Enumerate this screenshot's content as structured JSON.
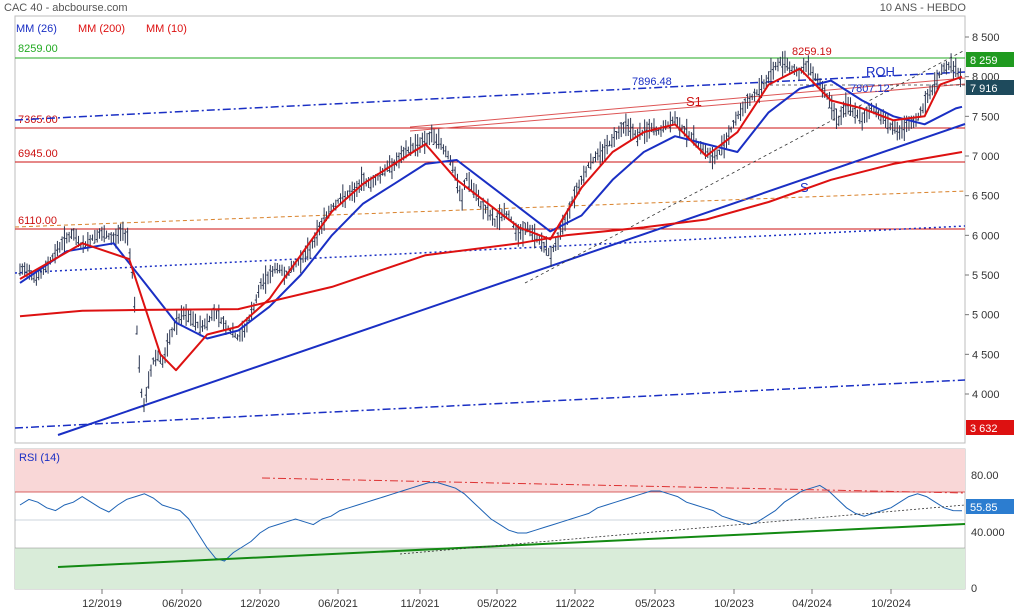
{
  "header": {
    "left": "CAC 40 - abcbourse.com",
    "right": "10 ANS - HEBDO"
  },
  "legend": [
    {
      "label": "MM (26)",
      "color": "#1a2fc4"
    },
    {
      "label": "MM (200)",
      "color": "#dd1111"
    },
    {
      "label": "MM (10)",
      "color": "#dd1111"
    }
  ],
  "colors": {
    "price_bars": "#2a3550",
    "mm26": "#1a2fc4",
    "mm200": "#dd1111",
    "mm10": "#dd1111",
    "support_line": "#1a2fc4",
    "level_lines": "#cc1111",
    "resistance_8259": "#22aa22",
    "rsi_line": "#1e63b5",
    "rsi_upper_zone": "#f9d7d7",
    "rsi_lower_zone": "#d9ecd9",
    "rsi_support": "#138a13",
    "badge_green": "#1f9a1f",
    "badge_dark": "#1e4a5c",
    "badge_red": "#dd1111",
    "badge_blue": "#2c7dd0"
  },
  "annotations": {
    "level_8259": "8259.00",
    "level_7365": "7365.00",
    "level_6945": "6945.00",
    "level_6110": "6110.00",
    "peak_label": "8259.19",
    "upper_channel_label": "7896.48",
    "lower_channel_label": "7807.12",
    "s1_label": "S1",
    "s_label": "S",
    "roh_label": "ROH"
  },
  "badges": {
    "price_high": "8 259",
    "price_last": "7 916",
    "price_low": "3 632",
    "rsi_last": "55.85"
  },
  "rsi_title": "RSI (14)",
  "chart_data": [
    {
      "type": "line",
      "title": "CAC 40",
      "x_ticks": [
        "12/2019",
        "06/2020",
        "12/2020",
        "06/2021",
        "11/2021",
        "05/2022",
        "11/2022",
        "05/2023",
        "10/2023",
        "04/2024",
        "10/2024"
      ],
      "y_ticks": [
        "8 500",
        "8 000",
        "7 500",
        "7 000",
        "6 500",
        "6 000",
        "5 500",
        "5 000",
        "4 500",
        "4 000"
      ],
      "ylim": [
        3500,
        8600
      ],
      "grid": false,
      "legend_position": "top-left",
      "price_points": [
        [
          0,
          5550
        ],
        [
          5,
          5580
        ],
        [
          10,
          5450
        ],
        [
          15,
          5550
        ],
        [
          20,
          5700
        ],
        [
          25,
          5850
        ],
        [
          30,
          5980
        ],
        [
          35,
          6000
        ],
        [
          40,
          5850
        ],
        [
          45,
          5950
        ],
        [
          50,
          6010
        ],
        [
          55,
          6000
        ],
        [
          60,
          5950
        ],
        [
          65,
          6050
        ],
        [
          69,
          6000
        ],
        [
          72,
          5500
        ],
        [
          75,
          4800
        ],
        [
          77,
          4200
        ],
        [
          79,
          3800
        ],
        [
          82,
          4100
        ],
        [
          85,
          4400
        ],
        [
          88,
          4500
        ],
        [
          92,
          4400
        ],
        [
          96,
          4700
        ],
        [
          100,
          4900
        ],
        [
          105,
          5000
        ],
        [
          110,
          4950
        ],
        [
          115,
          4850
        ],
        [
          120,
          4900
        ],
        [
          125,
          5050
        ],
        [
          130,
          4900
        ],
        [
          135,
          4800
        ],
        [
          140,
          4700
        ],
        [
          145,
          4850
        ],
        [
          150,
          5100
        ],
        [
          155,
          5400
        ],
        [
          160,
          5500
        ],
        [
          165,
          5600
        ],
        [
          170,
          5500
        ],
        [
          175,
          5600
        ],
        [
          180,
          5700
        ],
        [
          185,
          5800
        ],
        [
          190,
          6000
        ],
        [
          195,
          6200
        ],
        [
          200,
          6350
        ],
        [
          205,
          6450
        ],
        [
          210,
          6500
        ],
        [
          215,
          6550
        ],
        [
          220,
          6700
        ],
        [
          225,
          6650
        ],
        [
          230,
          6750
        ],
        [
          235,
          6850
        ],
        [
          240,
          6900
        ],
        [
          245,
          7000
        ],
        [
          250,
          7100
        ],
        [
          255,
          7150
        ],
        [
          260,
          7200
        ],
        [
          265,
          7250
        ],
        [
          270,
          7150
        ],
        [
          275,
          7000
        ],
        [
          280,
          6700
        ],
        [
          283,
          6400
        ],
        [
          286,
          6750
        ],
        [
          290,
          6600
        ],
        [
          295,
          6400
        ],
        [
          300,
          6300
        ],
        [
          305,
          6150
        ],
        [
          310,
          6300
        ],
        [
          315,
          6200
        ],
        [
          320,
          6000
        ],
        [
          325,
          6100
        ],
        [
          330,
          6000
        ],
        [
          335,
          5900
        ],
        [
          340,
          5750
        ],
        [
          345,
          5950
        ],
        [
          350,
          6200
        ],
        [
          355,
          6500
        ],
        [
          360,
          6700
        ],
        [
          365,
          6900
        ],
        [
          370,
          7000
        ],
        [
          375,
          7100
        ],
        [
          380,
          7200
        ],
        [
          385,
          7350
        ],
        [
          390,
          7400
        ],
        [
          395,
          7250
        ],
        [
          400,
          7300
        ],
        [
          405,
          7350
        ],
        [
          410,
          7300
        ],
        [
          415,
          7400
        ],
        [
          420,
          7450
        ],
        [
          425,
          7350
        ],
        [
          430,
          7250
        ],
        [
          435,
          7150
        ],
        [
          440,
          7050
        ],
        [
          445,
          6950
        ],
        [
          450,
          7100
        ],
        [
          455,
          7300
        ],
        [
          460,
          7500
        ],
        [
          465,
          7650
        ],
        [
          470,
          7750
        ],
        [
          475,
          7850
        ],
        [
          480,
          8000
        ],
        [
          485,
          8150
        ],
        [
          490,
          8200
        ],
        [
          495,
          8100
        ],
        [
          500,
          8050
        ],
        [
          505,
          8150
        ],
        [
          510,
          8000
        ],
        [
          515,
          7850
        ],
        [
          520,
          7650
        ],
        [
          525,
          7450
        ],
        [
          530,
          7650
        ],
        [
          535,
          7550
        ],
        [
          540,
          7450
        ],
        [
          545,
          7600
        ],
        [
          550,
          7550
        ],
        [
          555,
          7450
        ],
        [
          560,
          7350
        ],
        [
          565,
          7300
        ],
        [
          570,
          7400
        ],
        [
          575,
          7450
        ],
        [
          580,
          7650
        ],
        [
          585,
          7850
        ],
        [
          590,
          8050
        ],
        [
          595,
          8150
        ],
        [
          600,
          8100
        ],
        [
          604,
          7950
        ]
      ],
      "series": [
        {
          "name": "MM (26)",
          "points": [
            [
              0,
              5400
            ],
            [
              30,
              5800
            ],
            [
              60,
              5900
            ],
            [
              80,
              5400
            ],
            [
              100,
              4900
            ],
            [
              120,
              4700
            ],
            [
              140,
              4800
            ],
            [
              160,
              5100
            ],
            [
              180,
              5500
            ],
            [
              200,
              6000
            ],
            [
              220,
              6400
            ],
            [
              240,
              6650
            ],
            [
              260,
              6900
            ],
            [
              280,
              6950
            ],
            [
              300,
              6650
            ],
            [
              320,
              6350
            ],
            [
              340,
              6050
            ],
            [
              360,
              6250
            ],
            [
              380,
              6700
            ],
            [
              400,
              7050
            ],
            [
              420,
              7250
            ],
            [
              440,
              7150
            ],
            [
              460,
              7050
            ],
            [
              480,
              7550
            ],
            [
              500,
              7850
            ],
            [
              520,
              7950
            ],
            [
              540,
              7700
            ],
            [
              560,
              7500
            ],
            [
              580,
              7400
            ],
            [
              600,
              7600
            ],
            [
              604,
              7620
            ]
          ]
        },
        {
          "name": "MM (200)",
          "points": [
            [
              0,
              4980
            ],
            [
              40,
              5050
            ],
            [
              80,
              5060
            ],
            [
              140,
              5070
            ],
            [
              200,
              5350
            ],
            [
              260,
              5750
            ],
            [
              320,
              5900
            ],
            [
              350,
              6000
            ],
            [
              400,
              6100
            ],
            [
              440,
              6200
            ],
            [
              480,
              6420
            ],
            [
              520,
              6700
            ],
            [
              560,
              6900
            ],
            [
              604,
              7050
            ]
          ]
        },
        {
          "name": "MM (10)",
          "points": [
            [
              0,
              5450
            ],
            [
              40,
              5900
            ],
            [
              70,
              5700
            ],
            [
              90,
              4500
            ],
            [
              100,
              4300
            ],
            [
              120,
              4750
            ],
            [
              140,
              4850
            ],
            [
              160,
              5200
            ],
            [
              180,
              5750
            ],
            [
              200,
              6300
            ],
            [
              220,
              6650
            ],
            [
              240,
              6900
            ],
            [
              260,
              7150
            ],
            [
              280,
              6700
            ],
            [
              300,
              6400
            ],
            [
              320,
              6100
            ],
            [
              340,
              5950
            ],
            [
              360,
              6600
            ],
            [
              380,
              7050
            ],
            [
              400,
              7300
            ],
            [
              420,
              7400
            ],
            [
              440,
              7000
            ],
            [
              460,
              7300
            ],
            [
              480,
              7900
            ],
            [
              500,
              8100
            ],
            [
              520,
              7700
            ],
            [
              540,
              7600
            ],
            [
              560,
              7450
            ],
            [
              580,
              7500
            ],
            [
              590,
              7900
            ],
            [
              604,
              8000
            ]
          ]
        }
      ],
      "levels": [
        8259,
        7365,
        6945,
        6110
      ]
    },
    {
      "type": "line",
      "title": "RSI (14)",
      "y_ticks": [
        "80.00",
        "40.000",
        "0"
      ],
      "ylim": [
        0,
        100
      ],
      "zones": {
        "upper": 70,
        "lower": 30
      },
      "values": [
        60,
        64,
        62,
        58,
        56,
        60,
        62,
        66,
        62,
        58,
        55,
        60,
        64,
        66,
        68,
        65,
        60,
        58,
        56,
        50,
        40,
        30,
        22,
        20,
        26,
        30,
        34,
        40,
        44,
        46,
        48,
        50,
        48,
        46,
        50,
        52,
        56,
        58,
        60,
        62,
        64,
        66,
        68,
        70,
        72,
        74,
        76,
        76,
        74,
        72,
        68,
        62,
        56,
        50,
        46,
        42,
        40,
        40,
        42,
        44,
        46,
        48,
        50,
        52,
        54,
        58,
        60,
        62,
        64,
        66,
        68,
        70,
        70,
        68,
        66,
        62,
        60,
        58,
        56,
        52,
        50,
        48,
        46,
        48,
        52,
        56,
        62,
        66,
        70,
        72,
        74,
        70,
        64,
        58,
        54,
        52,
        54,
        56,
        58,
        62,
        66,
        68,
        66,
        62,
        58,
        56,
        55.85
      ]
    }
  ]
}
